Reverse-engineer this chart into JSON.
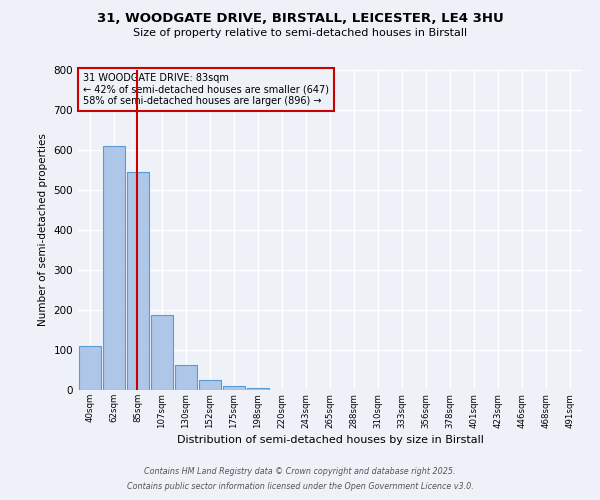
{
  "title_line1": "31, WOODGATE DRIVE, BIRSTALL, LEICESTER, LE4 3HU",
  "title_line2": "Size of property relative to semi-detached houses in Birstall",
  "xlabel": "Distribution of semi-detached houses by size in Birstall",
  "ylabel": "Number of semi-detached properties",
  "bins": [
    "40sqm",
    "62sqm",
    "85sqm",
    "107sqm",
    "130sqm",
    "152sqm",
    "175sqm",
    "198sqm",
    "220sqm",
    "243sqm",
    "265sqm",
    "288sqm",
    "310sqm",
    "333sqm",
    "356sqm",
    "378sqm",
    "401sqm",
    "423sqm",
    "446sqm",
    "468sqm",
    "491sqm"
  ],
  "values": [
    110,
    610,
    545,
    188,
    62,
    25,
    10,
    5,
    0,
    0,
    0,
    0,
    0,
    0,
    0,
    0,
    0,
    0,
    0,
    0,
    0
  ],
  "bar_color": "#aec6e8",
  "bar_edge_color": "#5b9bd5",
  "property_label": "31 WOODGATE DRIVE: 83sqm",
  "pct_smaller": 42,
  "n_smaller": 647,
  "pct_larger": 58,
  "n_larger": 896,
  "vline_color": "#cc0000",
  "ylim": [
    0,
    800
  ],
  "yticks": [
    0,
    100,
    200,
    300,
    400,
    500,
    600,
    700,
    800
  ],
  "footer_line1": "Contains HM Land Registry data © Crown copyright and database right 2025.",
  "footer_line2": "Contains public sector information licensed under the Open Government Licence v3.0.",
  "bg_color": "#eef2f8",
  "grid_color": "#ffffff"
}
